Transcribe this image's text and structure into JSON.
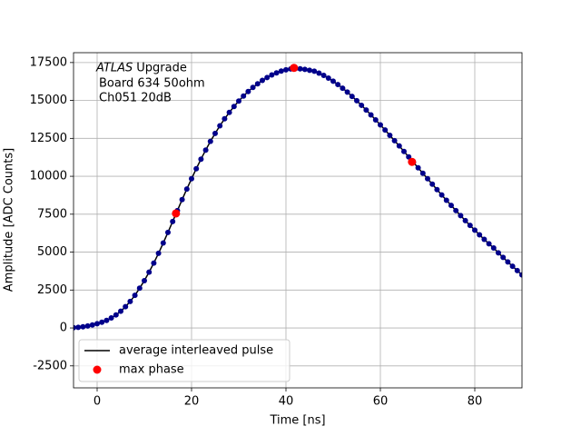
{
  "chart_data": {
    "type": "line",
    "xlabel": "Time [ns]",
    "ylabel": "Amplitude [ADC Counts]",
    "annotation": {
      "experiment": "ATLAS",
      "label": "Upgrade",
      "lines": [
        "Board 634 50ohm",
        "Ch051 20dB"
      ]
    },
    "xlim": [
      -5,
      90
    ],
    "ylim": [
      -3950,
      18150
    ],
    "xticks": [
      0,
      20,
      40,
      60,
      80
    ],
    "yticks": [
      -2500,
      0,
      2500,
      5000,
      7500,
      10000,
      12500,
      15000,
      17500
    ],
    "grid": true,
    "legend": "lower left",
    "series": [
      {
        "name": "average interleaved pulse",
        "type": "line",
        "color": "#000000",
        "marker_color": "#00008b",
        "x": [
          -5,
          -4,
          -3,
          -2,
          -1,
          0,
          1,
          2,
          3,
          4,
          5,
          6,
          7,
          8,
          9,
          10,
          11,
          12,
          13,
          14,
          15,
          16,
          17,
          18,
          19,
          20,
          21,
          22,
          23,
          24,
          25,
          26,
          27,
          28,
          29,
          30,
          31,
          32,
          33,
          34,
          35,
          36,
          37,
          38,
          39,
          40,
          41,
          42,
          43,
          44,
          45,
          46,
          47,
          48,
          49,
          50,
          51,
          52,
          53,
          54,
          55,
          56,
          57,
          58,
          59,
          60,
          61,
          62,
          63,
          64,
          65,
          66,
          67,
          68,
          69,
          70,
          71,
          72,
          73,
          74,
          75,
          76,
          77,
          78,
          79,
          80,
          81,
          82,
          83,
          84,
          85,
          86,
          87,
          88,
          89,
          90
        ],
        "values": [
          20,
          40,
          80,
          130,
          200,
          280,
          380,
          500,
          660,
          860,
          1100,
          1400,
          1750,
          2150,
          2620,
          3120,
          3680,
          4280,
          4920,
          5600,
          6300,
          7020,
          7740,
          8460,
          9160,
          9840,
          10500,
          11130,
          11730,
          12300,
          12830,
          13330,
          13790,
          14210,
          14600,
          14960,
          15290,
          15590,
          15860,
          16100,
          16320,
          16510,
          16680,
          16820,
          16940,
          17020,
          17080,
          17100,
          17090,
          17050,
          16990,
          16930,
          16800,
          16650,
          16470,
          16270,
          16050,
          15810,
          15550,
          15270,
          14980,
          14680,
          14370,
          14050,
          13720,
          13390,
          13050,
          12700,
          12350,
          12000,
          11640,
          11280,
          10920,
          10560,
          10200,
          9840,
          9480,
          9120,
          8770,
          8420,
          8080,
          7740,
          7410,
          7080,
          6760,
          6450,
          6140,
          5840,
          5550,
          5270,
          4950,
          4650,
          4350,
          4070,
          3780,
          3500
        ]
      },
      {
        "name": "max phase",
        "type": "scatter",
        "color": "#ff0000",
        "x": [
          16.7,
          41.7,
          66.7
        ],
        "values": [
          7550,
          17150,
          10950
        ]
      }
    ]
  }
}
